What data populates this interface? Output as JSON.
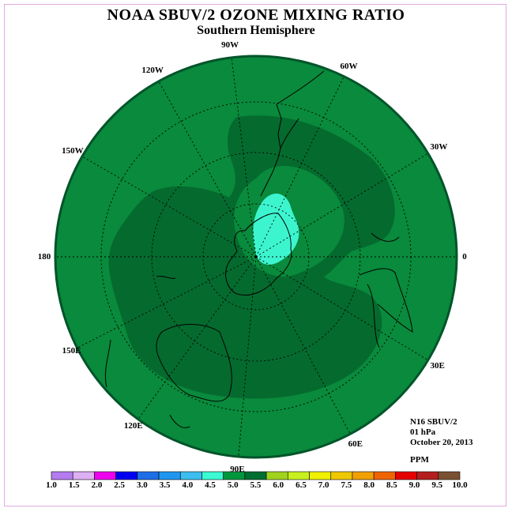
{
  "title": "NOAA SBUV/2 OZONE MIXING RATIO",
  "subtitle": "Southern Hemisphere",
  "longitude_labels": [
    "90W",
    "60W",
    "30W",
    "0",
    "30E",
    "60E",
    "90E",
    "120E",
    "150E",
    "180",
    "150W",
    "120W"
  ],
  "info": {
    "satellite": "N16 SBUV/2",
    "level": "01 hPa",
    "date": "October 20, 2013",
    "unit": "PPM"
  },
  "colorbar": {
    "ticks": [
      "1.0",
      "1.5",
      "2.0",
      "2.5",
      "3.0",
      "3.5",
      "4.0",
      "4.5",
      "5.0",
      "5.5",
      "6.0",
      "6.5",
      "7.0",
      "7.5",
      "8.0",
      "8.5",
      "9.0",
      "9.5",
      "10.0"
    ],
    "colors": [
      "#b57cf0",
      "#dcb0f2",
      "#ee00ee",
      "#0000f0",
      "#1e6ee8",
      "#1e96f0",
      "#3cbef0",
      "#3cfad2",
      "#00963c",
      "#006e32",
      "#a0d21e",
      "#c8f01e",
      "#f0f000",
      "#f0c800",
      "#f0a000",
      "#f06400",
      "#e60000",
      "#b41e1e",
      "#7a5032"
    ]
  },
  "map_colors": {
    "background": "#098a3c",
    "high_band": "#056a2e",
    "low_core": "#3cf5cf",
    "rim": "#02542a",
    "coast": "#000000"
  }
}
